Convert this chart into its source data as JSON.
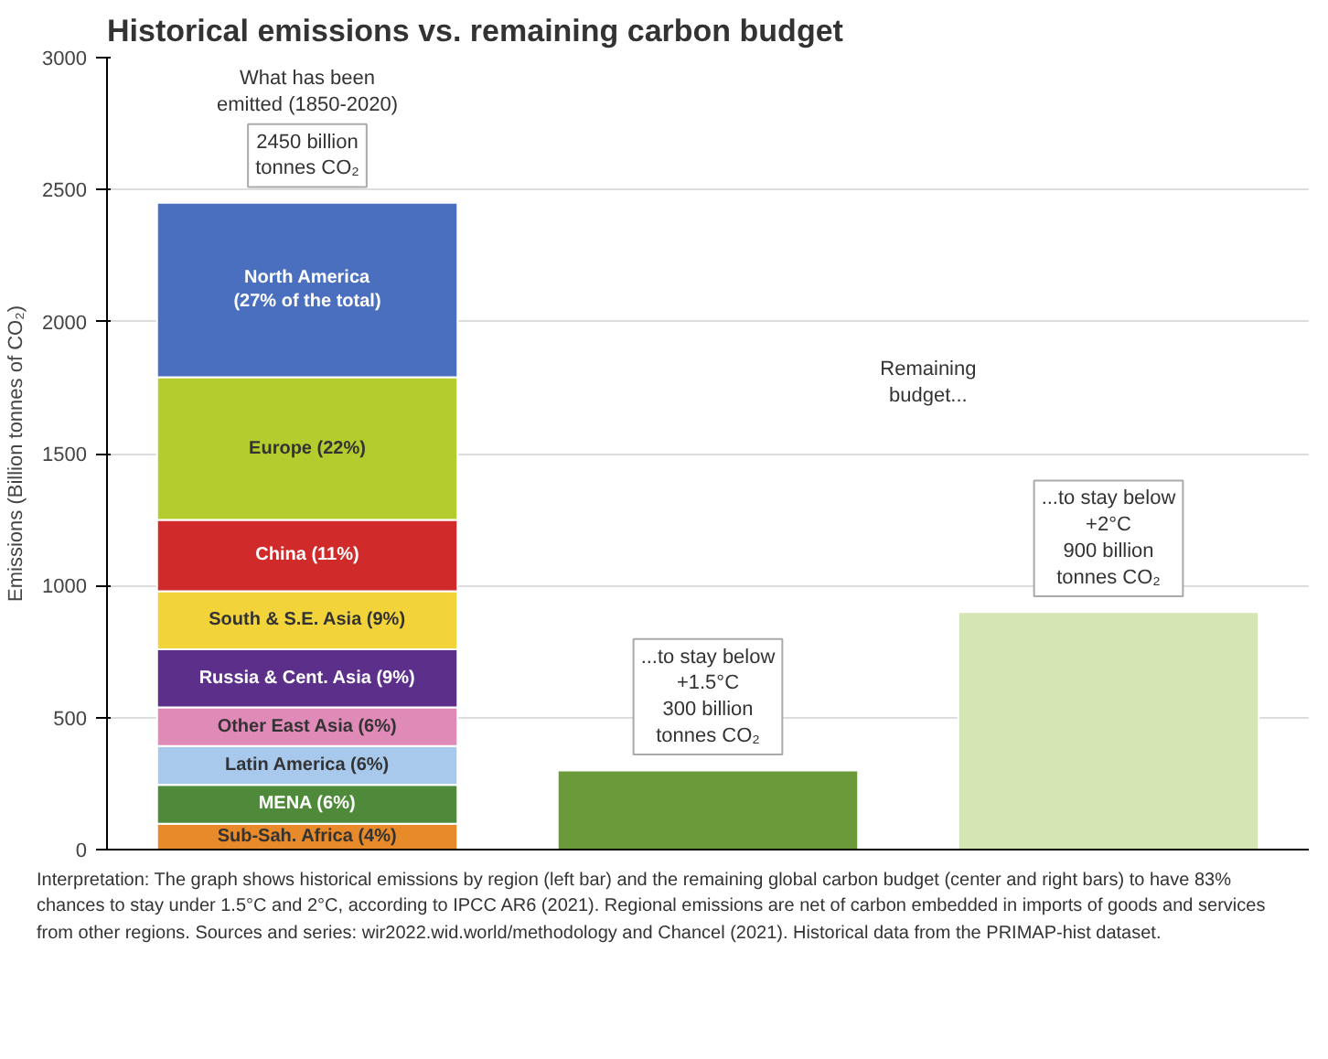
{
  "chart_data": {
    "type": "bar",
    "stacked": true,
    "title": "Historical emissions vs. remaining carbon budget",
    "ylabel": "Emissions (Billion tonnes of CO₂)",
    "categories": [
      null,
      null,
      null
    ],
    "ylim": [
      0,
      3000
    ],
    "yticks": [
      0,
      500,
      1000,
      1500,
      2000,
      2500,
      3000
    ],
    "grid": "y",
    "series": [
      {
        "name": "Sub-Sah. Africa (4%)",
        "color": "#e88a2a",
        "values": [
          98,
          null,
          null
        ]
      },
      {
        "name": "MENA (6%)",
        "color": "#4f8a3a",
        "values": [
          147,
          null,
          null
        ]
      },
      {
        "name": "Latin America (6%)",
        "color": "#a8c8ec",
        "values": [
          147,
          null,
          null
        ]
      },
      {
        "name": "Other East Asia (6%)",
        "color": "#e08ab8",
        "values": [
          147,
          null,
          null
        ]
      },
      {
        "name": "Russia & Cent. Asia (9%)",
        "color": "#5b2f8a",
        "values": [
          220,
          null,
          null
        ]
      },
      {
        "name": "South & S.E. Asia (9%)",
        "color": "#f2d43a",
        "values": [
          220,
          null,
          null
        ]
      },
      {
        "name": "China (11%)",
        "color": "#d02a2a",
        "values": [
          270,
          null,
          null
        ]
      },
      {
        "name": "Europe (22%)",
        "color": "#b5cc2e",
        "values": [
          540,
          null,
          null
        ]
      },
      {
        "name": "North America\n(27% of the total)",
        "color": "#4a6fbf",
        "values": [
          661,
          null,
          null
        ]
      },
      {
        "color": "#6a9a3a",
        "values": [
          null,
          300,
          null
        ]
      },
      {
        "color": "#d5e6b5",
        "values": [
          null,
          null,
          900
        ]
      }
    ],
    "annotations": [
      "What has been\nemitted (1850-2020)",
      "2450 billion\ntonnes CO₂",
      "Remaining\nbudget...",
      "...to stay below\n+1.5°C\n300 billion\ntonnes CO₂",
      "...to stay below\n+2°C\n900 billion\ntonnes CO₂",
      "Interpretation: The graph shows historical emissions by region (left bar) and the remaining global carbon budget (center and right bars) to have 83% chances to stay under 1.5°C and 2°C, according to IPCC AR6 (2021). Regional emissions are net of carbon embedded in imports of goods and services from other regions. Sources and series: wir2022.wid.world/methodology and Chancel (2021). Historical data from the PRIMAP-hist dataset."
    ]
  }
}
